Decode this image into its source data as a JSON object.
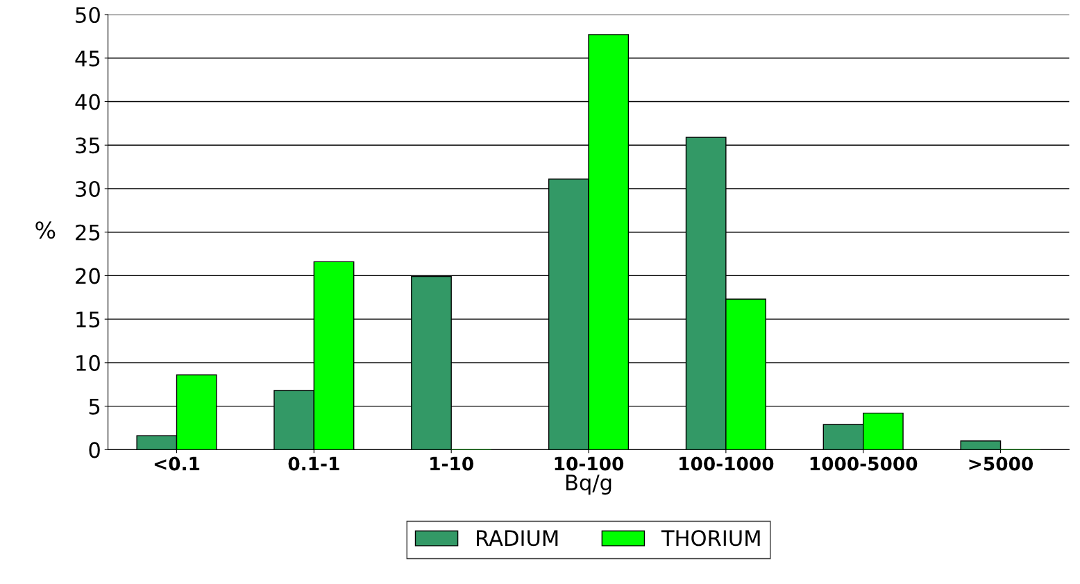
{
  "chart_data": {
    "type": "bar",
    "xlabel": "Bq/g",
    "ylabel": "%",
    "categories": [
      "<0.1",
      "0.1-1",
      "1-10",
      "10-100",
      "100-1000",
      "1000-5000",
      ">5000"
    ],
    "series": [
      {
        "name": "RADIUM",
        "color": "#339966",
        "values": [
          1.6,
          6.8,
          19.9,
          31.1,
          35.9,
          2.9,
          1.0
        ]
      },
      {
        "name": "THORIUM",
        "color": "#00ff00",
        "values": [
          8.6,
          21.6,
          0,
          47.7,
          17.3,
          4.2,
          0
        ]
      }
    ],
    "ylim": [
      0,
      50
    ],
    "yticks": [
      0,
      5,
      10,
      15,
      20,
      25,
      30,
      35,
      40,
      45,
      50
    ],
    "grid": "y",
    "legend": "bottom"
  }
}
